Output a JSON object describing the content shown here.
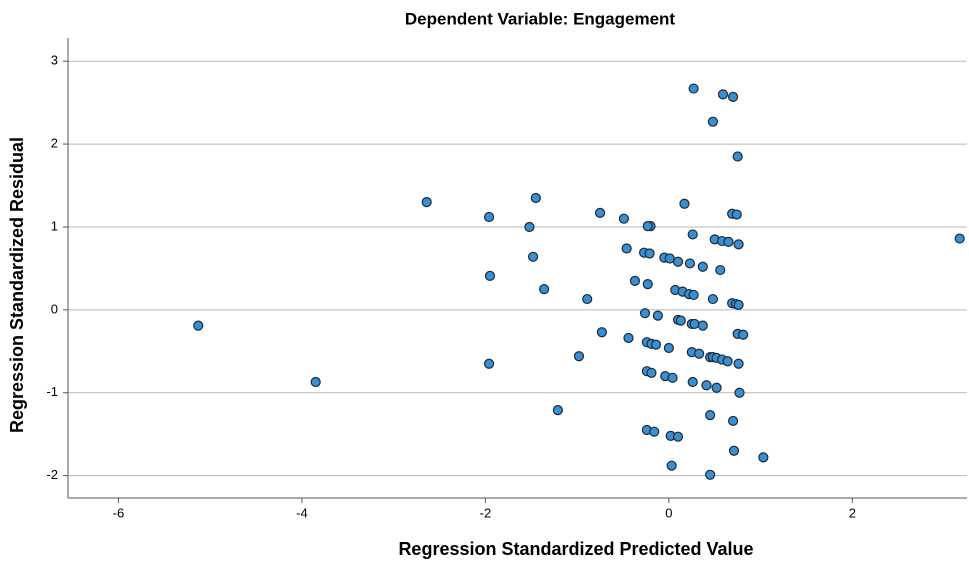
{
  "chart_data": {
    "type": "scatter",
    "title": "Dependent Variable: Engagement",
    "x_label": "Regression Standardized Predicted Value",
    "y_label": "Regression Standardized Residual",
    "xlim": [
      -6.55,
      3.25
    ],
    "ylim": [
      -2.27,
      3.28
    ],
    "xticks": [
      -6,
      -4,
      -2,
      0,
      2
    ],
    "yticks": [
      3,
      2,
      1,
      0,
      -1,
      -2
    ],
    "grid": true,
    "color": "#3a8fd0",
    "edge_color": "#1b2a3a",
    "x": [
      0.27,
      0.59,
      0.7,
      0.48,
      0.75,
      -2.64,
      -1.45,
      -1.96,
      -0.75,
      -0.49,
      -0.2,
      -0.23,
      0.17,
      0.69,
      0.74,
      -1.52,
      0.26,
      0.5,
      0.58,
      0.65,
      0.76,
      3.17,
      -0.46,
      -0.27,
      -0.21,
      -0.05,
      0.01,
      0.1,
      0.23,
      0.37,
      0.56,
      -1.48,
      -1.95,
      -1.36,
      -0.37,
      -0.23,
      0.07,
      0.15,
      0.22,
      0.27,
      0.48,
      -0.89,
      0.69,
      0.73,
      0.76,
      -5.13,
      -0.26,
      -0.12,
      0.1,
      0.13,
      0.25,
      0.28,
      0.37,
      0.75,
      0.81,
      -0.73,
      -0.44,
      -0.24,
      -0.19,
      -0.14,
      0.0,
      0.25,
      0.33,
      0.45,
      0.48,
      0.52,
      0.58,
      0.64,
      0.76,
      -0.98,
      -1.96,
      -0.24,
      -0.19,
      -0.04,
      0.04,
      0.26,
      0.41,
      0.52,
      -3.85,
      0.77,
      -1.21,
      0.45,
      0.7,
      -0.24,
      -0.16,
      0.02,
      0.1,
      0.71,
      1.03,
      0.03,
      0.45
    ],
    "y": [
      2.67,
      2.6,
      2.57,
      2.27,
      1.85,
      1.3,
      1.35,
      1.12,
      1.17,
      1.1,
      1.01,
      1.01,
      1.28,
      1.16,
      1.15,
      1.0,
      0.91,
      0.85,
      0.83,
      0.82,
      0.79,
      0.86,
      0.74,
      0.69,
      0.68,
      0.63,
      0.62,
      0.58,
      0.56,
      0.52,
      0.48,
      0.64,
      0.41,
      0.25,
      0.35,
      0.31,
      0.24,
      0.22,
      0.19,
      0.18,
      0.13,
      0.13,
      0.08,
      0.07,
      0.06,
      -0.19,
      -0.04,
      -0.07,
      -0.12,
      -0.13,
      -0.17,
      -0.17,
      -0.19,
      -0.29,
      -0.3,
      -0.27,
      -0.34,
      -0.39,
      -0.41,
      -0.42,
      -0.46,
      -0.51,
      -0.53,
      -0.57,
      -0.57,
      -0.58,
      -0.6,
      -0.62,
      -0.65,
      -0.56,
      -0.65,
      -0.74,
      -0.76,
      -0.8,
      -0.82,
      -0.87,
      -0.91,
      -0.94,
      -0.87,
      -1.0,
      -1.21,
      -1.27,
      -1.34,
      -1.45,
      -1.47,
      -1.52,
      -1.53,
      -1.7,
      -1.78,
      -1.88,
      -1.99
    ]
  }
}
